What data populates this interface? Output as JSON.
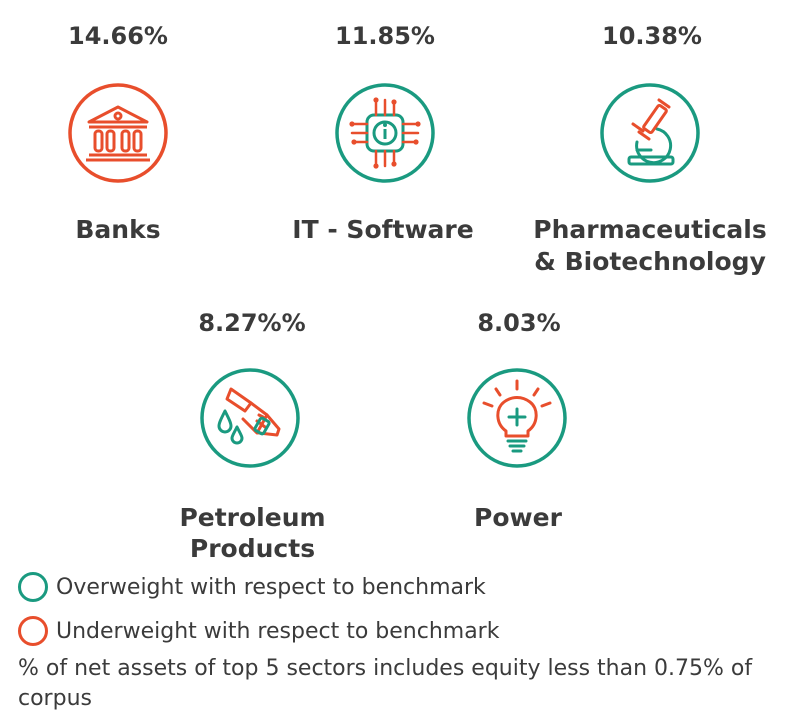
{
  "colors": {
    "overweight": "#1a9a80",
    "underweight": "#e84e2c",
    "text": "#3b3b3b"
  },
  "sectors": [
    {
      "percent": "14.66%",
      "name_line1": "Banks",
      "name_line2": "",
      "icon": "bank-icon",
      "weight": "underweight"
    },
    {
      "percent": "11.85%",
      "name_line1": "IT - Software",
      "name_line2": "",
      "icon": "chip-icon",
      "weight": "overweight"
    },
    {
      "percent": "10.38%",
      "name_line1": "Pharmaceuticals",
      "name_line2": "& Biotechnology",
      "icon": "microscope-icon",
      "weight": "overweight"
    },
    {
      "percent": "8.27%%",
      "name_line1": "Petroleum",
      "name_line2": "Products",
      "icon": "fuel-nozzle-icon",
      "weight": "overweight"
    },
    {
      "percent": "8.03%",
      "name_line1": "Power",
      "name_line2": "",
      "icon": "lightbulb-icon",
      "weight": "overweight"
    }
  ],
  "legend": {
    "overweight": "Overweight with respect to benchmark",
    "underweight": "Underweight with respect to benchmark"
  },
  "footnote": "% of net assets of top 5 sectors includes equity less than 0.75% of corpus"
}
